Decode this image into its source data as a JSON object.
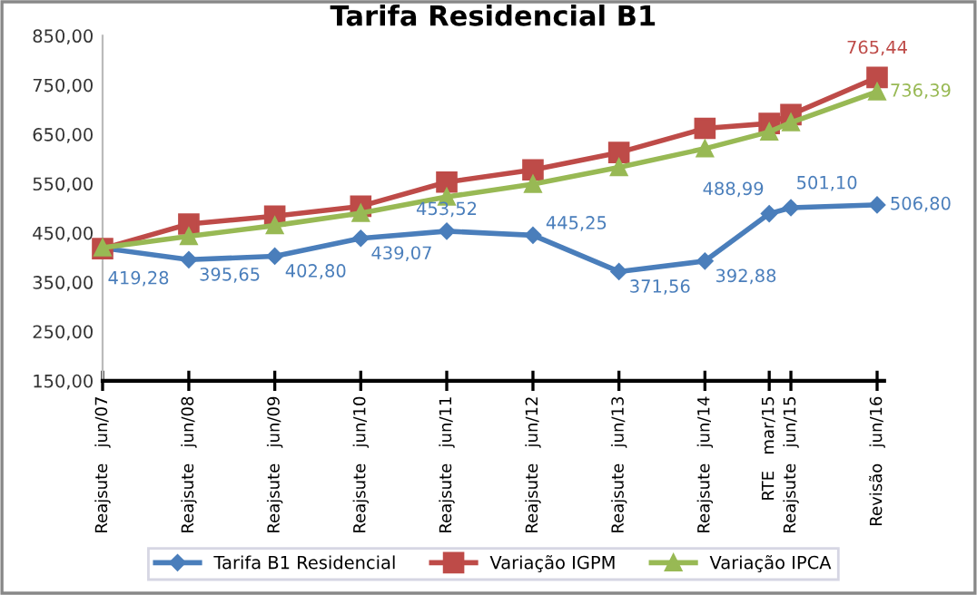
{
  "chart_data": {
    "type": "line",
    "title": "Tarifa Residencial B1",
    "x": [
      "2007-06",
      "2008-06",
      "2009-06",
      "2010-06",
      "2011-06",
      "2012-06",
      "2013-06",
      "2014-06",
      "2015-03",
      "2015-06",
      "2016-06"
    ],
    "series": [
      {
        "name": "Tarifa B1 Residencial",
        "color": "#4a7ebb",
        "marker": "diamond",
        "values": [
          419.28,
          395.65,
          402.8,
          439.07,
          453.52,
          445.25,
          371.56,
          392.88,
          488.99,
          501.1,
          506.8
        ],
        "value_labels": [
          "419,28",
          "395,65",
          "402,80",
          "439,07",
          "453,52",
          "445,25",
          "371,56",
          "392,88",
          "488,99",
          "501,10",
          "506,80"
        ]
      },
      {
        "name": "Variação IGPM",
        "color": "#be4b48",
        "marker": "square",
        "values": [
          418,
          468,
          484,
          504,
          553,
          578,
          613,
          662,
          672,
          690,
          765.44
        ],
        "value_labels": [
          null,
          null,
          null,
          null,
          null,
          null,
          null,
          null,
          null,
          null,
          "765,44"
        ]
      },
      {
        "name": "Variação IPCA",
        "color": "#98b954",
        "marker": "triangle",
        "values": [
          420,
          443,
          465,
          490,
          523,
          549,
          583,
          621,
          655,
          674,
          736.39
        ],
        "value_labels": [
          null,
          null,
          null,
          null,
          null,
          null,
          null,
          null,
          null,
          null,
          "736,39"
        ]
      }
    ],
    "xlim": [
      "2007-06",
      "2016-07"
    ],
    "xticks": [
      {
        "value": "2007-06",
        "label": "Reajsute   jun/07"
      },
      {
        "value": "2008-06",
        "label": "Reajsute   jun/08"
      },
      {
        "value": "2009-06",
        "label": "Reajsute   jun/09"
      },
      {
        "value": "2010-06",
        "label": "Reajsute   jun/10"
      },
      {
        "value": "2011-06",
        "label": "Reajsute   jun/11"
      },
      {
        "value": "2012-06",
        "label": "Reajsute   jun/12"
      },
      {
        "value": "2013-06",
        "label": "Reajsute   jun/13"
      },
      {
        "value": "2014-06",
        "label": "Reajsute   jun/14"
      },
      {
        "value": "2015-03",
        "label": "RTE   mar/15"
      },
      {
        "value": "2015-06",
        "label": "Reajsute   jun/15"
      },
      {
        "value": "2016-06",
        "label": "Revisão   jun/16"
      }
    ],
    "ylim": [
      150,
      850
    ],
    "yticks": [
      {
        "value": 150,
        "label": "150,00"
      },
      {
        "value": 250,
        "label": "250,00"
      },
      {
        "value": 350,
        "label": "350,00"
      },
      {
        "value": 450,
        "label": "450,00"
      },
      {
        "value": 550,
        "label": "550,00"
      },
      {
        "value": 650,
        "label": "650,00"
      },
      {
        "value": 750,
        "label": "750,00"
      },
      {
        "value": 850,
        "label": "850,00"
      }
    ],
    "grid": false,
    "legend": "bottom",
    "line_style": "solid"
  }
}
